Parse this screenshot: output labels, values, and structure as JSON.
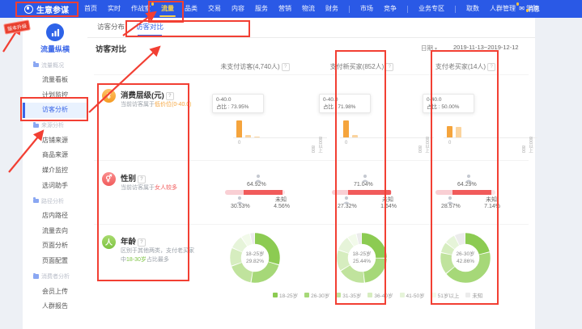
{
  "navbar": {
    "logo": "生意参谋",
    "items": [
      "首页",
      "实时",
      "作战室",
      "流量",
      "品类",
      "交易",
      "内容",
      "服务",
      "营销",
      "物流",
      "财务",
      "市场",
      "竞争",
      "业务专区",
      "取数",
      "人群管理",
      "学院"
    ],
    "active_item": "流量",
    "badge_items": [
      "作战室",
      "人群管理"
    ],
    "divider_after": [
      "财务",
      "竞争",
      "业务专区"
    ],
    "message_label": "消息"
  },
  "sidebar": {
    "module_title": "流量纵横",
    "groups": [
      {
        "label": "流量概况",
        "items": [
          "流量看板",
          "计划监控",
          "访客分析"
        ]
      },
      {
        "label": "来源分析",
        "items": [
          "店铺来源",
          "商品来源",
          "媒介监控",
          "选词助手"
        ]
      },
      {
        "label": "路径分析",
        "items": [
          "店内路径",
          "流量去向",
          "页面分析",
          "页面配置"
        ]
      },
      {
        "label": "消费者分析",
        "items": [
          "会员上传",
          "人群报告"
        ]
      }
    ],
    "active_item": "访客分析"
  },
  "tabs": [
    "访客分布",
    "访客对比"
  ],
  "active_tab": "访客对比",
  "page": {
    "title": "访客对比",
    "date_label": "日期",
    "date_value": "2019-11-13~2019-12-12"
  },
  "columns": [
    "未支付访客(4,740人)",
    "支付新买家(852人)",
    "支付老买家(14人)"
  ],
  "ui": {
    "help_icon": "?"
  },
  "rows": {
    "consumption": {
      "icon": "¥",
      "title": "消费层级(元)",
      "desc_prefix": "当前访客属于",
      "desc_highlight": "低价位(0-40.0)",
      "charts": [
        {
          "tooltip_title": "0-40.0",
          "tooltip_value": "占比 : 73.95%",
          "bars": [
            73.95,
            12,
            6,
            3.5,
            2.5,
            2
          ],
          "x_labels": [
            "0",
            "800",
            "800以上"
          ]
        },
        {
          "tooltip_title": "0-40.0",
          "tooltip_value": "占比 : 71.98%",
          "bars": [
            71.98,
            13,
            5,
            3,
            2.5,
            2
          ],
          "x_labels": [
            "0",
            "800",
            "800以上"
          ]
        },
        {
          "tooltip_title": "0-40.0",
          "tooltip_value": "占比 : 50.00%",
          "bars": [
            50,
            48,
            5,
            3,
            2,
            2
          ],
          "x_labels": [
            "0",
            "800",
            "800以上"
          ]
        }
      ]
    },
    "gender": {
      "icon": "⚥",
      "title": "性别",
      "desc_prefix": "当前访客属于",
      "desc_highlight": "女人较多",
      "unknown_label": "未知",
      "charts": [
        {
          "male": 30.53,
          "female": 64.92,
          "unknown": 4.56,
          "male_label": "30.53%",
          "female_label": "64.92%",
          "unknown_value": "4.56%"
        },
        {
          "male": 27.32,
          "female": 71.04,
          "unknown": 1.64,
          "male_label": "27.32%",
          "female_label": "71.04%",
          "unknown_value": "1.64%"
        },
        {
          "male": 28.57,
          "female": 64.29,
          "unknown": 7.14,
          "male_label": "28.57%",
          "female_label": "64.29%",
          "unknown_value": "7.14%"
        }
      ]
    },
    "age": {
      "icon": "人",
      "title": "年龄",
      "desc_prefix": "区别于其他两类，支付老买家中",
      "desc_highlight": "18-30岁",
      "desc_suffix": "占比最多",
      "legend": [
        "18-25岁",
        "26-30岁",
        "31-35岁",
        "36-40岁",
        "41-50岁",
        "51岁以上",
        "未知"
      ],
      "colors": [
        "#8ccb52",
        "#a6d878",
        "#c0e39d",
        "#d6edbf",
        "#e6f4d9",
        "#f2faea",
        "#ececec"
      ],
      "charts": [
        {
          "center_label": "18-25岁",
          "center_value": "29.82%",
          "values": [
            29.82,
            23,
            17,
            12,
            9,
            6,
            3.18
          ]
        },
        {
          "center_label": "18-25岁",
          "center_value": "25.44%",
          "values": [
            25.44,
            23,
            18,
            14,
            10,
            6,
            3.56
          ]
        },
        {
          "center_label": "26-30岁",
          "center_value": "42.86%",
          "values": [
            21.43,
            42.86,
            14.29,
            7.14,
            7.14,
            0,
            7.14
          ]
        }
      ]
    }
  },
  "gender_colors": {
    "male": "#f9cfd4",
    "female": "#f15b5b",
    "unknown": "#fbe3e6"
  },
  "annotations": {
    "tag_text": "版本升级",
    "color": "#f23f33"
  }
}
